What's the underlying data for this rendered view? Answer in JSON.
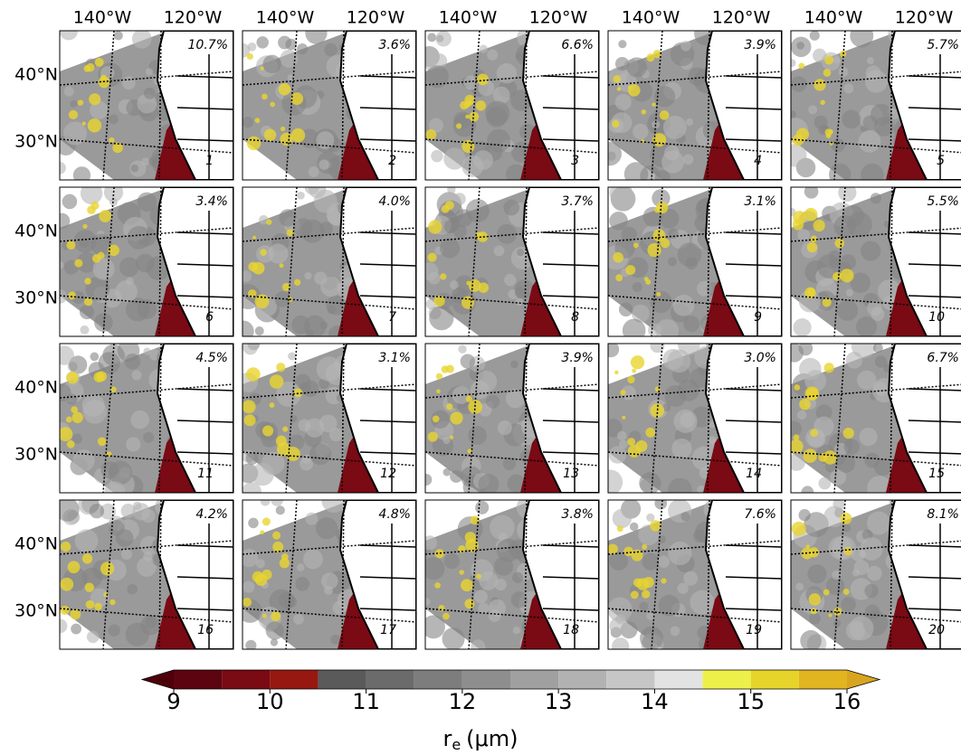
{
  "figure": {
    "lon_labels": [
      "140°W",
      "120°W"
    ],
    "lat_labels": [
      "40°N",
      "30°N"
    ],
    "panels": [
      {
        "percent": "10.7%",
        "number": "1"
      },
      {
        "percent": "3.6%",
        "number": "2"
      },
      {
        "percent": "6.6%",
        "number": "3"
      },
      {
        "percent": "3.9%",
        "number": "4"
      },
      {
        "percent": "5.7%",
        "number": "5"
      },
      {
        "percent": "3.4%",
        "number": "6"
      },
      {
        "percent": "4.0%",
        "number": "7"
      },
      {
        "percent": "3.7%",
        "number": "8"
      },
      {
        "percent": "3.1%",
        "number": "9"
      },
      {
        "percent": "5.5%",
        "number": "10"
      },
      {
        "percent": "4.5%",
        "number": "11"
      },
      {
        "percent": "3.1%",
        "number": "12"
      },
      {
        "percent": "3.9%",
        "number": "13"
      },
      {
        "percent": "3.0%",
        "number": "14"
      },
      {
        "percent": "6.7%",
        "number": "15"
      },
      {
        "percent": "4.2%",
        "number": "16"
      },
      {
        "percent": "4.8%",
        "number": "17"
      },
      {
        "percent": "3.8%",
        "number": "18"
      },
      {
        "percent": "7.6%",
        "number": "19"
      },
      {
        "percent": "8.1%",
        "number": "20"
      }
    ],
    "colorbar": {
      "label_base": "r",
      "label_sub": "e",
      "label_unit": "(μm)",
      "lim": [
        9,
        16
      ],
      "ticks": [
        9,
        10,
        11,
        12,
        13,
        14,
        15,
        16
      ],
      "bounds": [
        9,
        9.5,
        10,
        10.5,
        11,
        11.5,
        12,
        12.5,
        13,
        13.5,
        14,
        14.5,
        15,
        15.5,
        16
      ],
      "colors": [
        "#5c0510",
        "#7a0a14",
        "#961810",
        "#5a5a5a",
        "#6b6b6b",
        "#7d7d7d",
        "#8e8e8e",
        "#a0a0a0",
        "#b2b2b2",
        "#c6c6c6",
        "#e3e3e3",
        "#eef04a",
        "#e6d42a",
        "#e0b520"
      ],
      "under_color": "#4d000a",
      "over_color": "#d9a520"
    }
  }
}
